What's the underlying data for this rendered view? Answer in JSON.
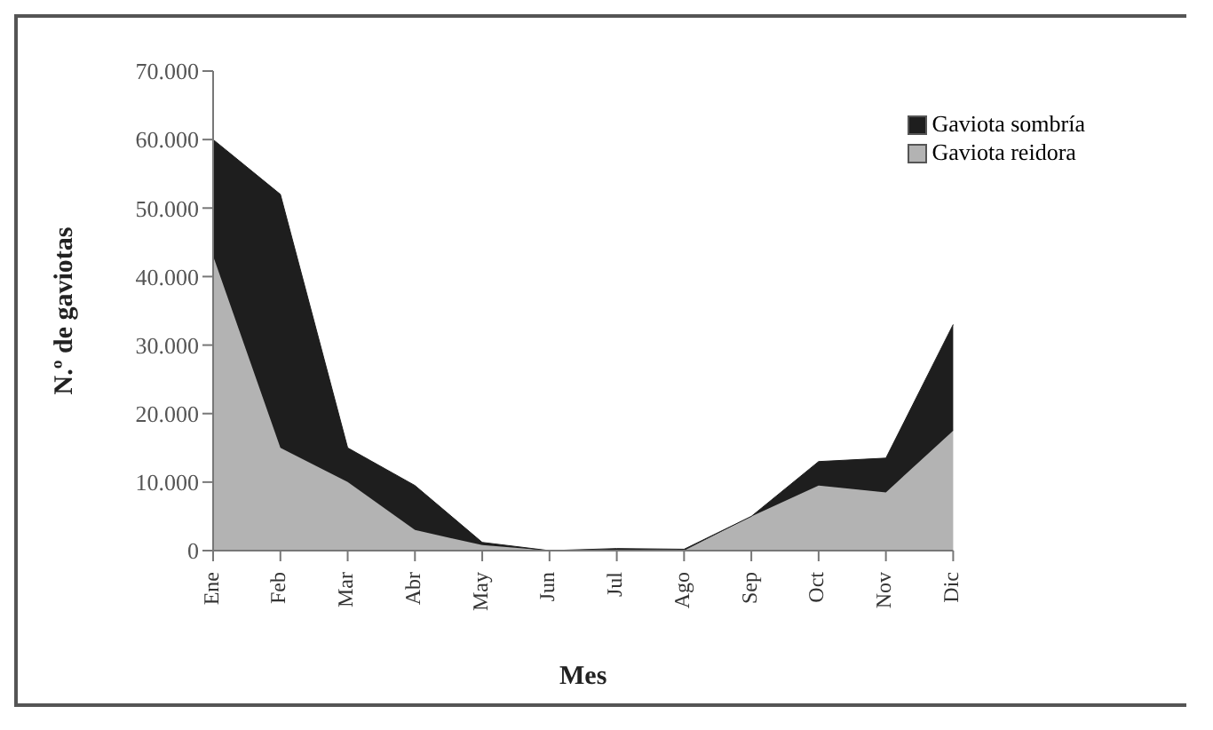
{
  "chart_data": {
    "type": "area",
    "stacked": true,
    "xlabel": "Mes",
    "ylabel": "N.º de gaviotas",
    "categories": [
      "Ene",
      "Feb",
      "Mar",
      "Abr",
      "May",
      "Jun",
      "Jul",
      "Ago",
      "Sep",
      "Oct",
      "Nov",
      "Dic"
    ],
    "series": [
      {
        "name": "Gaviota reidora",
        "color": "#b3b3b3",
        "values": [
          43000,
          15000,
          10000,
          3000,
          800,
          0,
          0,
          0,
          5000,
          9500,
          8500,
          17500
        ]
      },
      {
        "name": "Gaviota sombría",
        "color": "#1e1e1e",
        "values": [
          17000,
          37000,
          5000,
          6500,
          400,
          0,
          300,
          200,
          0,
          3500,
          5000,
          15500
        ]
      }
    ],
    "ylim": [
      0,
      70000
    ],
    "yticks": [
      0,
      {
        "value": 10000,
        "label": "10.000"
      },
      {
        "value": 20000,
        "label": "20.000"
      },
      {
        "value": 30000,
        "label": "30.000"
      },
      {
        "value": 40000,
        "label": "40.000"
      },
      {
        "value": 50000,
        "label": "50.000"
      },
      {
        "value": 60000,
        "label": "60.000"
      },
      {
        "value": 70000,
        "label": "70.000"
      }
    ],
    "grid": false,
    "legend": "top right"
  }
}
